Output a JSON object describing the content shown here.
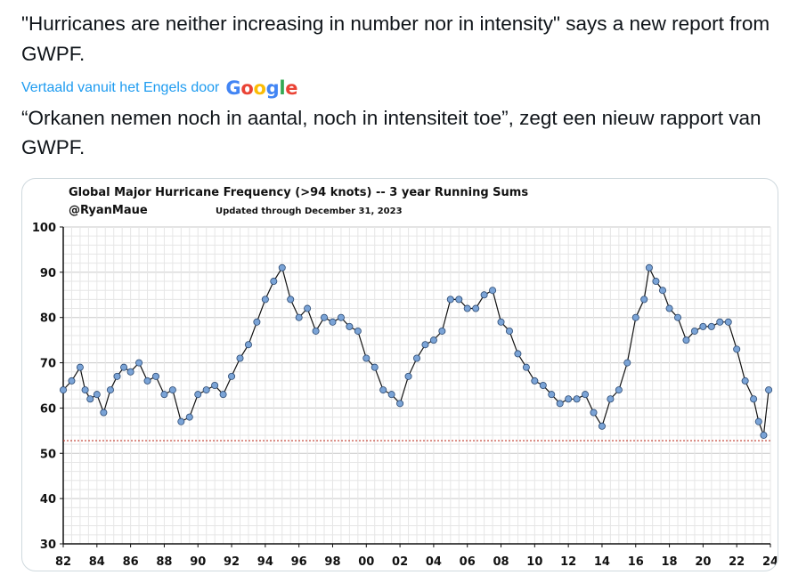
{
  "tweet": {
    "original_text": "\"Hurricanes are neither increasing in number nor in intensity\" says a new report from GWPF.",
    "translation_label": "Vertaald vanuit het Engels door",
    "translation_provider": "Google",
    "translated_text": "“Orkanen nemen noch in aantal, noch in intensiteit toe”, zegt een nieuw rapport van GWPF."
  },
  "colors": {
    "link": "#1d9bf0",
    "google_blue": "#4285F4",
    "google_red": "#EA4335",
    "google_yellow": "#FBBC05",
    "google_green": "#34A853",
    "marker_fill": "#7aa3d6",
    "marker_stroke": "#2c4a72",
    "reference_line": "#c0392b"
  },
  "chart_data": {
    "type": "line",
    "title": "Global Major Hurricane Frequency (>94 knots)  -- 3 year Running Sums",
    "author": "@RyanMaue",
    "updated": "Updated through December 31, 2023",
    "ylim": [
      30,
      100
    ],
    "yticks": [
      "100",
      "90",
      "80",
      "70",
      "60",
      "50",
      "40",
      "30"
    ],
    "xlim": [
      1982,
      2024
    ],
    "xticks": [
      "82",
      "84",
      "86",
      "88",
      "90",
      "92",
      "94",
      "96",
      "98",
      "00",
      "02",
      "04",
      "06",
      "08",
      "10",
      "12",
      "14",
      "16",
      "18",
      "20",
      "22",
      "24"
    ],
    "grid": true,
    "reference_line": 52.8,
    "series": [
      {
        "name": "3-year running sum",
        "x": [
          1982.0,
          1982.5,
          1983.0,
          1983.3,
          1983.6,
          1984.0,
          1984.4,
          1984.8,
          1985.2,
          1985.6,
          1986.0,
          1986.5,
          1987.0,
          1987.5,
          1988.0,
          1988.5,
          1989.0,
          1989.5,
          1990.0,
          1990.5,
          1991.0,
          1991.5,
          1992.0,
          1992.5,
          1993.0,
          1993.5,
          1994.0,
          1994.5,
          1995.0,
          1995.5,
          1996.0,
          1996.5,
          1997.0,
          1997.5,
          1998.0,
          1998.5,
          1999.0,
          1999.5,
          2000.0,
          2000.5,
          2001.0,
          2001.5,
          2002.0,
          2002.5,
          2003.0,
          2003.5,
          2004.0,
          2004.5,
          2005.0,
          2005.5,
          2006.0,
          2006.5,
          2007.0,
          2007.5,
          2008.0,
          2008.5,
          2009.0,
          2009.5,
          2010.0,
          2010.5,
          2011.0,
          2011.5,
          2012.0,
          2012.5,
          2013.0,
          2013.5,
          2014.0,
          2014.5,
          2015.0,
          2015.5,
          2016.0,
          2016.5,
          2016.8,
          2017.2,
          2017.6,
          2018.0,
          2018.5,
          2019.0,
          2019.5,
          2020.0,
          2020.5,
          2021.0,
          2021.5,
          2022.0,
          2022.5,
          2023.0,
          2023.3,
          2023.6,
          2023.9
        ],
        "values": [
          64,
          66,
          69,
          64,
          62,
          63,
          59,
          64,
          67,
          69,
          68,
          70,
          66,
          67,
          63,
          64,
          57,
          58,
          63,
          64,
          65,
          63,
          67,
          71,
          74,
          79,
          84,
          88,
          91,
          84,
          80,
          82,
          77,
          80,
          79,
          80,
          78,
          77,
          71,
          69,
          64,
          63,
          61,
          67,
          71,
          74,
          75,
          77,
          84,
          84,
          82,
          82,
          85,
          86,
          79,
          77,
          72,
          69,
          66,
          65,
          63,
          61,
          62,
          62,
          63,
          59,
          56,
          62,
          64,
          70,
          80,
          84,
          91,
          88,
          86,
          82,
          80,
          75,
          77,
          78,
          78,
          79,
          79,
          73,
          66,
          62,
          57,
          54,
          64
        ]
      }
    ]
  }
}
